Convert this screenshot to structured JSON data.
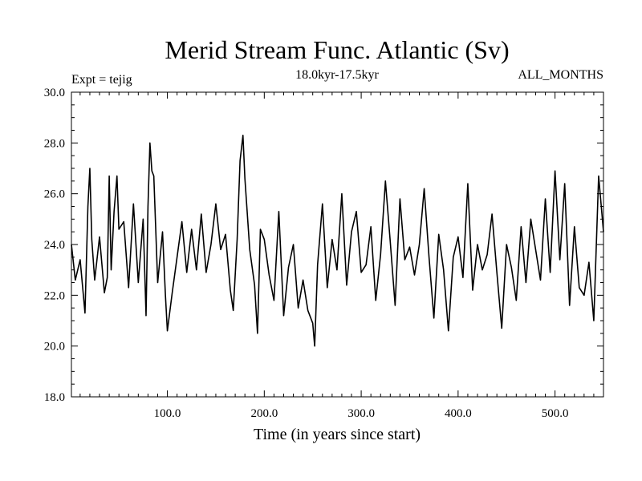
{
  "chart_data": {
    "type": "line",
    "title": "Merid Stream Func. Atlantic (Sv)",
    "subtitle": "18.0kyr-17.5kyr",
    "left_annotation": "Expt = tejig",
    "right_annotation": "ALL_MONTHS",
    "xlabel": "Time (in years since start)",
    "ylabel": "",
    "xlim": [
      1,
      550
    ],
    "ylim": [
      18.0,
      30.0
    ],
    "x_ticks": [
      100,
      200,
      300,
      400,
      500
    ],
    "x_tick_labels": [
      "100.0",
      "200.0",
      "300.0",
      "400.0",
      "500.0"
    ],
    "y_ticks": [
      18,
      20,
      22,
      24,
      26,
      28,
      30
    ],
    "y_tick_labels": [
      "18.0",
      "20.0",
      "22.0",
      "24.0",
      "26.0",
      "28.0",
      "30.0"
    ],
    "grid": false,
    "line_color": "#000000",
    "series": [
      {
        "name": "",
        "x": [
          1,
          5,
          10,
          15,
          18,
          20,
          22,
          25,
          30,
          35,
          38,
          40,
          42,
          45,
          48,
          50,
          55,
          60,
          65,
          70,
          75,
          78,
          80,
          82,
          84,
          86,
          90,
          95,
          98,
          100,
          105,
          110,
          115,
          120,
          125,
          130,
          135,
          140,
          145,
          150,
          155,
          160,
          165,
          168,
          172,
          175,
          178,
          180,
          185,
          190,
          193,
          196,
          200,
          205,
          210,
          215,
          220,
          225,
          230,
          235,
          240,
          245,
          250,
          252,
          255,
          260,
          265,
          270,
          275,
          280,
          285,
          290,
          295,
          300,
          305,
          310,
          315,
          320,
          325,
          330,
          335,
          340,
          345,
          350,
          355,
          360,
          365,
          370,
          375,
          380,
          385,
          390,
          395,
          400,
          405,
          410,
          415,
          420,
          425,
          430,
          435,
          440,
          445,
          450,
          455,
          460,
          465,
          470,
          475,
          480,
          485,
          490,
          495,
          500,
          505,
          510,
          515,
          520,
          525,
          530,
          535,
          540,
          545,
          550
        ],
        "values": [
          24.0,
          22.6,
          23.4,
          21.3,
          25.5,
          27.0,
          24.2,
          22.6,
          24.3,
          22.1,
          22.7,
          26.7,
          23.0,
          25.3,
          26.7,
          24.6,
          24.9,
          22.3,
          25.6,
          22.5,
          25.0,
          21.2,
          25.5,
          28.0,
          26.9,
          26.7,
          22.5,
          24.5,
          22.0,
          20.6,
          22.1,
          23.5,
          24.9,
          22.9,
          24.6,
          23.0,
          25.2,
          22.9,
          24.0,
          25.6,
          23.8,
          24.4,
          22.2,
          21.4,
          24.2,
          27.3,
          28.3,
          26.6,
          23.8,
          22.4,
          20.5,
          24.6,
          24.2,
          22.8,
          21.8,
          25.3,
          21.2,
          23.1,
          24.0,
          21.5,
          22.6,
          21.4,
          20.9,
          20.0,
          23.2,
          25.6,
          22.3,
          24.2,
          23.0,
          26.0,
          22.4,
          24.5,
          25.3,
          22.9,
          23.2,
          24.7,
          21.8,
          23.6,
          26.5,
          24.1,
          21.6,
          25.8,
          23.4,
          23.9,
          22.8,
          24.0,
          26.2,
          23.5,
          21.1,
          24.4,
          23.0,
          20.6,
          23.5,
          24.3,
          22.7,
          26.4,
          22.2,
          24.0,
          23.0,
          23.6,
          25.2,
          22.9,
          20.7,
          24.0,
          23.1,
          21.8,
          24.7,
          22.5,
          25.0,
          23.8,
          22.6,
          25.8,
          22.9,
          26.9,
          23.4,
          26.4,
          21.6,
          24.7,
          22.3,
          22.0,
          23.3,
          21.0,
          26.7,
          24.5
        ]
      }
    ]
  }
}
